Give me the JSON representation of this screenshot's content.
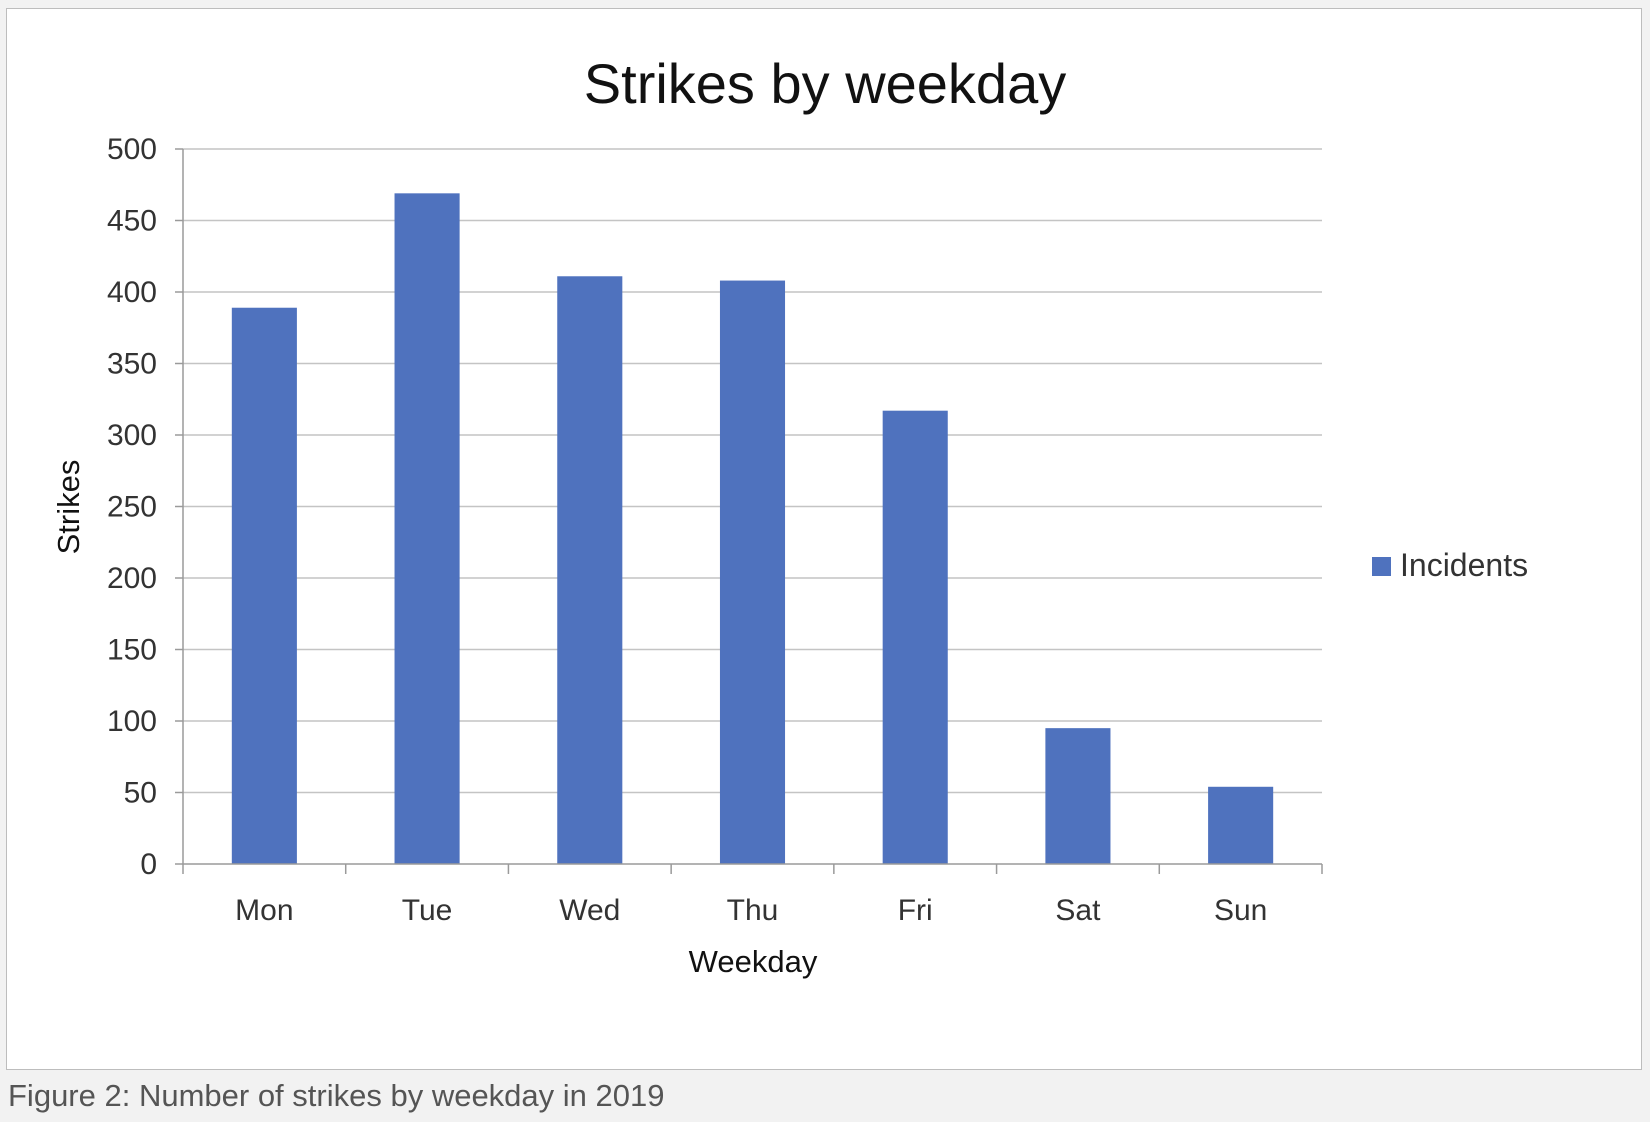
{
  "chart_data": {
    "type": "bar",
    "title": "Strikes by weekday",
    "xlabel": "Weekday",
    "ylabel": "Strikes",
    "categories": [
      "Mon",
      "Tue",
      "Wed",
      "Thu",
      "Fri",
      "Sat",
      "Sun"
    ],
    "series": [
      {
        "name": "Incidents",
        "color": "#4f72be",
        "values": [
          389,
          469,
          411,
          408,
          317,
          95,
          54
        ]
      }
    ],
    "ylim": [
      0,
      500
    ],
    "yticks": [
      0,
      50,
      100,
      150,
      200,
      250,
      300,
      350,
      400,
      450,
      500
    ],
    "grid": true,
    "legend": "right"
  },
  "caption": "Figure 2: Number of strikes by weekday in 2019"
}
